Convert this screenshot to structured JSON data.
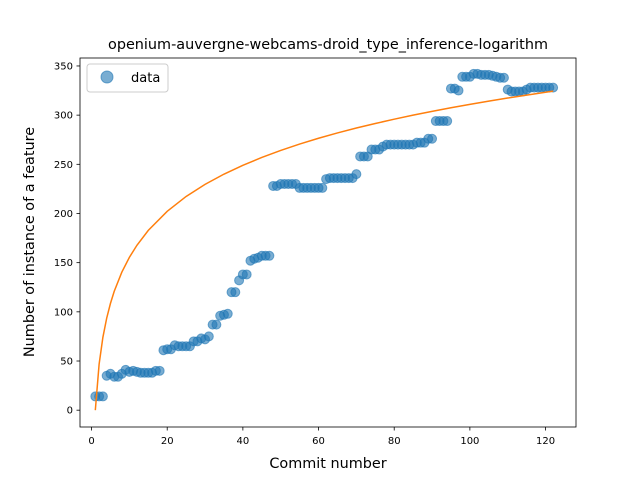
{
  "chart_data": {
    "type": "scatter",
    "title": "openium-auvergne-webcams-droid_type_inference-logarithm",
    "xlabel": "Commit number",
    "ylabel": "Number of instance of a feature",
    "xlim": [
      -3.05,
      128.05
    ],
    "ylim": [
      -17.1,
      358.1
    ],
    "xticks": [
      0,
      20,
      40,
      60,
      80,
      100,
      120
    ],
    "yticks": [
      0,
      50,
      100,
      150,
      200,
      250,
      300,
      350
    ],
    "grid": false,
    "legend": {
      "position": "upper-left",
      "entries": [
        "data"
      ]
    },
    "colors": {
      "data": "#1f77b4",
      "fit": "#ff7f0e"
    },
    "series": [
      {
        "name": "data",
        "kind": "scatter",
        "x": [
          1,
          2,
          3,
          4,
          5,
          6,
          7,
          8,
          9,
          10,
          11,
          12,
          13,
          14,
          15,
          16,
          17,
          18,
          19,
          20,
          21,
          22,
          23,
          24,
          25,
          26,
          27,
          28,
          29,
          30,
          31,
          32,
          33,
          34,
          35,
          36,
          37,
          38,
          39,
          40,
          41,
          42,
          43,
          44,
          45,
          46,
          47,
          48,
          49,
          50,
          51,
          52,
          53,
          54,
          55,
          56,
          57,
          58,
          59,
          60,
          61,
          62,
          63,
          64,
          65,
          66,
          67,
          68,
          69,
          70,
          71,
          72,
          73,
          74,
          75,
          76,
          77,
          78,
          79,
          80,
          81,
          82,
          83,
          84,
          85,
          86,
          87,
          88,
          89,
          90,
          91,
          92,
          93,
          94,
          95,
          96,
          97,
          98,
          99,
          100,
          101,
          102,
          103,
          104,
          105,
          106,
          107,
          108,
          109,
          110,
          111,
          112,
          113,
          114,
          115,
          116,
          117,
          118,
          119,
          120,
          121,
          122
        ],
        "y": [
          14,
          14,
          14,
          35,
          37,
          34,
          34,
          37,
          41,
          39,
          40,
          39,
          38,
          38,
          38,
          38,
          40,
          40,
          61,
          62,
          62,
          66,
          65,
          65,
          65,
          65,
          70,
          70,
          73,
          72,
          75,
          87,
          87,
          96,
          97,
          98,
          120,
          120,
          132,
          138,
          138,
          152,
          154,
          155,
          157,
          157,
          157,
          228,
          228,
          230,
          230,
          230,
          230,
          230,
          226,
          226,
          226,
          226,
          226,
          226,
          226,
          235,
          236,
          236,
          236,
          236,
          236,
          236,
          236,
          240,
          258,
          258,
          258,
          265,
          265,
          265,
          268,
          270,
          270,
          270,
          270,
          270,
          270,
          270,
          270,
          272,
          272,
          272,
          276,
          276,
          294,
          294,
          294,
          294,
          327,
          327,
          325,
          339,
          339,
          339,
          342,
          342,
          341,
          341,
          341,
          340,
          339,
          338,
          338,
          326,
          324,
          324,
          324,
          324,
          326,
          328,
          328,
          328,
          328,
          328,
          328,
          328
        ]
      },
      {
        "name": "fit",
        "kind": "line",
        "curve": "logarithm",
        "x": [
          1,
          2,
          3,
          4,
          5,
          6,
          8,
          10,
          12,
          15,
          20,
          25,
          30,
          35,
          40,
          45,
          50,
          55,
          60,
          65,
          70,
          75,
          80,
          85,
          90,
          95,
          100,
          105,
          110,
          115,
          120,
          122
        ],
        "y": [
          0.0,
          46.8,
          74.1,
          93.5,
          108.6,
          120.9,
          140.3,
          155.4,
          167.7,
          182.8,
          202.2,
          217.3,
          229.6,
          240.0,
          249.0,
          257.0,
          264.1,
          270.6,
          276.5,
          281.9,
          286.9,
          291.5,
          295.9,
          300.0,
          303.8,
          307.5,
          310.9,
          314.2,
          317.4,
          320.4,
          323.3,
          324.4
        ]
      }
    ]
  }
}
